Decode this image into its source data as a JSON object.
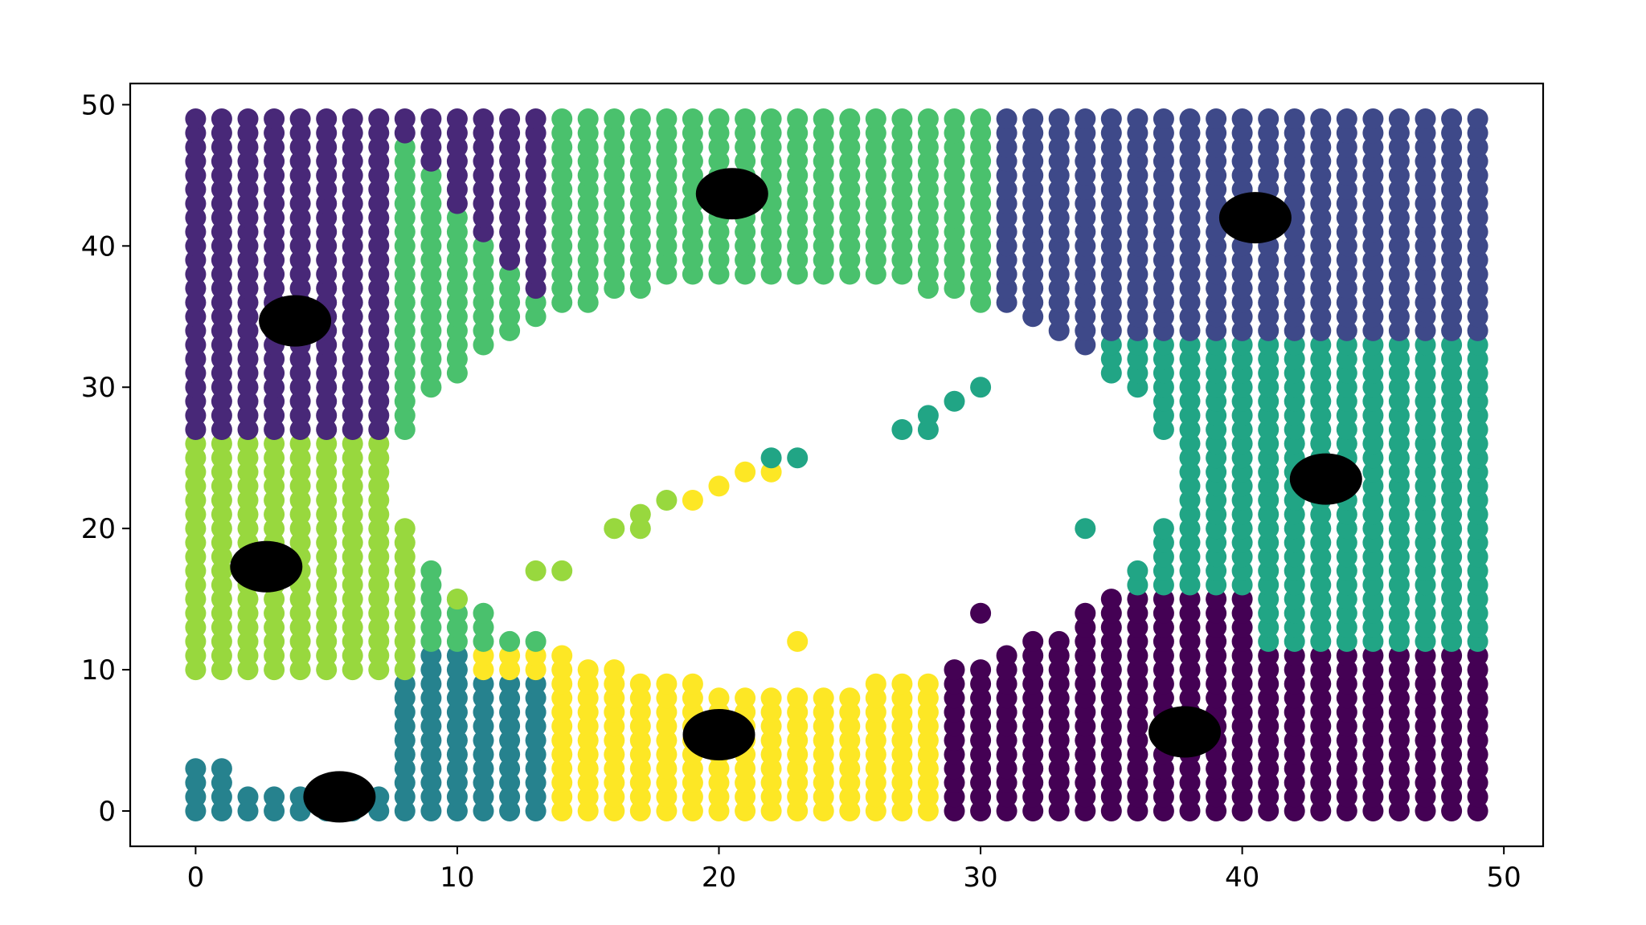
{
  "chart_data": {
    "type": "scatter",
    "title": "",
    "xlabel": "",
    "ylabel": "",
    "xlim": [
      -2.5,
      51.5
    ],
    "ylim": [
      -2.5,
      51.5
    ],
    "xticks": [
      0,
      10,
      20,
      30,
      40,
      50
    ],
    "yticks": [
      0,
      10,
      20,
      30,
      40,
      50
    ],
    "grid": false,
    "legend": "none",
    "grid_spacing": 1,
    "clusters": [
      {
        "color": "#440154",
        "region": "x 28.5–49.5, y 0–11.5 plus x 32–40, y 11.5–15.5"
      },
      {
        "color": "#482878",
        "region": "x 0–7, y 26.5–49.5 plus diagonal edge down to x 13, y 36"
      },
      {
        "color": "#3e4989",
        "region": "x 31–49.5, y 34–49.5"
      },
      {
        "color": "#26828e",
        "region": "x 0–13.5, y 0–10 (lower-left)"
      },
      {
        "color": "#21a585",
        "region": "x 36–49.5, y 12.5–33"
      },
      {
        "color": "#4ac16d",
        "region": "x 7–31, y 35–49.5"
      },
      {
        "color": "#98d83e",
        "region": "x 0–8, y 10–26.5"
      },
      {
        "color": "#fde725",
        "region": "x 11–28.5, y 0–11"
      }
    ],
    "inner_points": [
      {
        "x": 13,
        "y": 17,
        "color": "#98d83e"
      },
      {
        "x": 14,
        "y": 17,
        "color": "#98d83e"
      },
      {
        "x": 16,
        "y": 20,
        "color": "#98d83e"
      },
      {
        "x": 17,
        "y": 20,
        "color": "#98d83e"
      },
      {
        "x": 17,
        "y": 21,
        "color": "#98d83e"
      },
      {
        "x": 18,
        "y": 22,
        "color": "#98d83e"
      },
      {
        "x": 19,
        "y": 22,
        "color": "#fde725"
      },
      {
        "x": 20,
        "y": 23,
        "color": "#fde725"
      },
      {
        "x": 21,
        "y": 24,
        "color": "#fde725"
      },
      {
        "x": 22,
        "y": 24,
        "color": "#fde725"
      },
      {
        "x": 22,
        "y": 25,
        "color": "#21a585"
      },
      {
        "x": 23,
        "y": 25,
        "color": "#21a585"
      },
      {
        "x": 27,
        "y": 27,
        "color": "#21a585"
      },
      {
        "x": 28,
        "y": 27,
        "color": "#21a585"
      },
      {
        "x": 28,
        "y": 28,
        "color": "#21a585"
      },
      {
        "x": 29,
        "y": 29,
        "color": "#21a585"
      },
      {
        "x": 30,
        "y": 30,
        "color": "#21a585"
      },
      {
        "x": 23,
        "y": 12,
        "color": "#fde725"
      },
      {
        "x": 30,
        "y": 14,
        "color": "#440154"
      },
      {
        "x": 10,
        "y": 15,
        "color": "#98d83e"
      },
      {
        "x": 34,
        "y": 20,
        "color": "#21a585"
      }
    ],
    "centroids": [
      {
        "x": 5.5,
        "y": 1
      },
      {
        "x": 2.7,
        "y": 17.3
      },
      {
        "x": 3.8,
        "y": 34.7
      },
      {
        "x": 20.5,
        "y": 43.7
      },
      {
        "x": 40.5,
        "y": 42
      },
      {
        "x": 43.2,
        "y": 23.5
      },
      {
        "x": 37.8,
        "y": 5.6
      },
      {
        "x": 20,
        "y": 5.4
      }
    ],
    "centroid_color": "#000000",
    "hole": {
      "cx": 22.5,
      "cy": 23.2,
      "rx": 14.8,
      "ry": 14.5
    }
  }
}
